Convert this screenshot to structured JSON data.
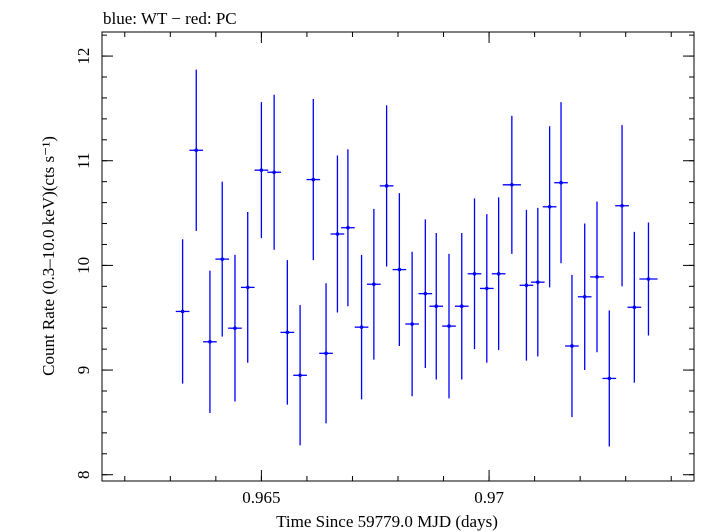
{
  "chart_data": {
    "type": "scatter",
    "title": "blue: WT − red: PC",
    "xlabel": "Time Since 59779.0 MJD (days)",
    "ylabel": "Count Rate (0.3–10.0 keV)(cts s⁻¹)",
    "xlim": [
      0.9615,
      0.9745
    ],
    "ylim": [
      7.94,
      12.23
    ],
    "x_ticks": [
      {
        "value": 0.965,
        "label": "0.965"
      },
      {
        "value": 0.97,
        "label": "0.97"
      }
    ],
    "y_ticks": [
      {
        "value": 8,
        "label": "8"
      },
      {
        "value": 9,
        "label": "9"
      },
      {
        "value": 10,
        "label": "10"
      },
      {
        "value": 11,
        "label": "11"
      },
      {
        "value": 12,
        "label": "12"
      }
    ],
    "x_minor_step": 0.001,
    "y_minor_step": 0.2,
    "grid": false,
    "series": [
      {
        "color": "#0000ff",
        "points": [
          {
            "x": 0.96327,
            "y": 9.56,
            "xerr": 0.00015,
            "yerr": 0.69
          },
          {
            "x": 0.96357,
            "y": 11.1,
            "xerr": 0.00015,
            "yerr": 0.77
          },
          {
            "x": 0.96387,
            "y": 9.27,
            "xerr": 0.00015,
            "yerr": 0.68
          },
          {
            "x": 0.96414,
            "y": 10.06,
            "xerr": 0.00015,
            "yerr": 0.74
          },
          {
            "x": 0.96442,
            "y": 9.4,
            "xerr": 0.00015,
            "yerr": 0.7
          },
          {
            "x": 0.9647,
            "y": 9.79,
            "xerr": 0.00015,
            "yerr": 0.72
          },
          {
            "x": 0.965,
            "y": 10.91,
            "xerr": 0.00015,
            "yerr": 0.65
          },
          {
            "x": 0.96528,
            "y": 10.89,
            "xerr": 0.00015,
            "yerr": 0.74
          },
          {
            "x": 0.96557,
            "y": 9.36,
            "xerr": 0.00015,
            "yerr": 0.69
          },
          {
            "x": 0.96585,
            "y": 8.95,
            "xerr": 0.00015,
            "yerr": 0.67
          },
          {
            "x": 0.96614,
            "y": 10.82,
            "xerr": 0.00015,
            "yerr": 0.77
          },
          {
            "x": 0.96642,
            "y": 9.16,
            "xerr": 0.00015,
            "yerr": 0.67
          },
          {
            "x": 0.96667,
            "y": 10.3,
            "xerr": 0.00015,
            "yerr": 0.75
          },
          {
            "x": 0.9669,
            "y": 10.36,
            "xerr": 0.00015,
            "yerr": 0.75
          },
          {
            "x": 0.9672,
            "y": 9.41,
            "xerr": 0.00015,
            "yerr": 0.69
          },
          {
            "x": 0.96747,
            "y": 9.82,
            "xerr": 0.00015,
            "yerr": 0.72
          },
          {
            "x": 0.96775,
            "y": 10.76,
            "xerr": 0.00015,
            "yerr": 0.77
          },
          {
            "x": 0.96803,
            "y": 9.96,
            "xerr": 0.00015,
            "yerr": 0.73
          },
          {
            "x": 0.96831,
            "y": 9.44,
            "xerr": 0.00015,
            "yerr": 0.69
          },
          {
            "x": 0.9686,
            "y": 9.73,
            "xerr": 0.00015,
            "yerr": 0.71
          },
          {
            "x": 0.96884,
            "y": 9.61,
            "xerr": 0.00015,
            "yerr": 0.7
          },
          {
            "x": 0.96912,
            "y": 9.42,
            "xerr": 0.00015,
            "yerr": 0.69
          },
          {
            "x": 0.9694,
            "y": 9.61,
            "xerr": 0.00015,
            "yerr": 0.7
          },
          {
            "x": 0.96968,
            "y": 9.92,
            "xerr": 0.00015,
            "yerr": 0.72
          },
          {
            "x": 0.96995,
            "y": 9.78,
            "xerr": 0.00015,
            "yerr": 0.71
          },
          {
            "x": 0.97021,
            "y": 9.92,
            "xerr": 0.00015,
            "yerr": 0.73
          },
          {
            "x": 0.9705,
            "y": 10.77,
            "xerr": 0.0002,
            "yerr": 0.66
          },
          {
            "x": 0.97082,
            "y": 9.81,
            "xerr": 0.00015,
            "yerr": 0.72
          },
          {
            "x": 0.97107,
            "y": 9.84,
            "xerr": 0.00015,
            "yerr": 0.71
          },
          {
            "x": 0.97133,
            "y": 10.56,
            "xerr": 0.00015,
            "yerr": 0.77
          },
          {
            "x": 0.97158,
            "y": 10.79,
            "xerr": 0.00015,
            "yerr": 0.77
          },
          {
            "x": 0.97182,
            "y": 9.23,
            "xerr": 0.00015,
            "yerr": 0.68
          },
          {
            "x": 0.9721,
            "y": 9.7,
            "xerr": 0.00015,
            "yerr": 0.7
          },
          {
            "x": 0.97237,
            "y": 9.89,
            "xerr": 0.00015,
            "yerr": 0.72
          },
          {
            "x": 0.97264,
            "y": 8.92,
            "xerr": 0.00015,
            "yerr": 0.65
          },
          {
            "x": 0.97292,
            "y": 10.57,
            "xerr": 0.00015,
            "yerr": 0.77
          },
          {
            "x": 0.97319,
            "y": 9.6,
            "xerr": 0.00015,
            "yerr": 0.72
          },
          {
            "x": 0.9735,
            "y": 9.87,
            "xerr": 0.0002,
            "yerr": 0.54
          }
        ]
      }
    ]
  }
}
